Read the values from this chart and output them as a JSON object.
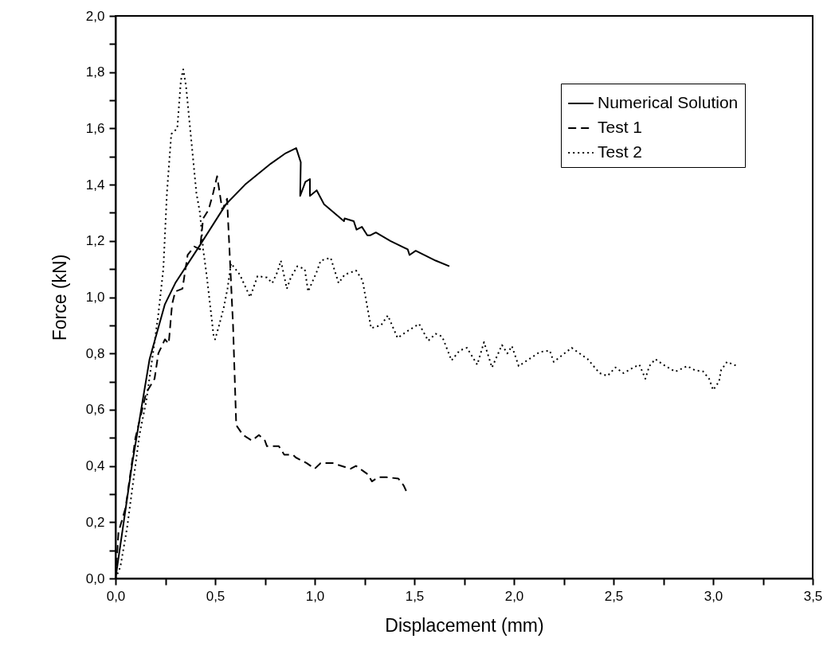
{
  "chart_data": {
    "type": "line",
    "xlabel": "Displacement (mm)",
    "ylabel": "Force (kN)",
    "xlim": [
      0,
      3.5
    ],
    "ylim": [
      0,
      2.0
    ],
    "xticks": [
      {
        "value": 0,
        "label": "0,0"
      },
      {
        "value": 0.25,
        "label": null
      },
      {
        "value": 0.5,
        "label": "0,5"
      },
      {
        "value": 0.75,
        "label": null
      },
      {
        "value": 1.0,
        "label": "1,0"
      },
      {
        "value": 1.25,
        "label": null
      },
      {
        "value": 1.5,
        "label": "1,5"
      },
      {
        "value": 1.75,
        "label": null
      },
      {
        "value": 2.0,
        "label": "2,0"
      },
      {
        "value": 2.25,
        "label": null
      },
      {
        "value": 2.5,
        "label": "2,5"
      },
      {
        "value": 2.75,
        "label": null
      },
      {
        "value": 3.0,
        "label": "3,0"
      },
      {
        "value": 3.25,
        "label": null
      },
      {
        "value": 3.5,
        "label": "3,5"
      }
    ],
    "yticks": [
      {
        "value": 0,
        "label": "0,0"
      },
      {
        "value": 0.1,
        "label": null
      },
      {
        "value": 0.2,
        "label": "0,2"
      },
      {
        "value": 0.3,
        "label": null
      },
      {
        "value": 0.4,
        "label": "0,4"
      },
      {
        "value": 0.5,
        "label": null
      },
      {
        "value": 0.6,
        "label": "0,6"
      },
      {
        "value": 0.7,
        "label": null
      },
      {
        "value": 0.8,
        "label": "0,8"
      },
      {
        "value": 0.9,
        "label": null
      },
      {
        "value": 1.0,
        "label": "1,0"
      },
      {
        "value": 1.1,
        "label": null
      },
      {
        "value": 1.2,
        "label": "1,2"
      },
      {
        "value": 1.3,
        "label": null
      },
      {
        "value": 1.4,
        "label": "1,4"
      },
      {
        "value": 1.5,
        "label": null
      },
      {
        "value": 1.6,
        "label": "1,6"
      },
      {
        "value": 1.7,
        "label": null
      },
      {
        "value": 1.8,
        "label": "1,8"
      },
      {
        "value": 1.9,
        "label": null
      },
      {
        "value": 2.0,
        "label": "2,0"
      }
    ],
    "grid": false,
    "legend": "top right",
    "marker": "none",
    "series": [
      {
        "name": "Numerical Solution",
        "color": "#000000",
        "line_style": "solid",
        "x": [
          0,
          0.084,
          0.171,
          0.248,
          0.3,
          0.424,
          0.554,
          0.65,
          0.78,
          0.85,
          0.907,
          0.93,
          0.927,
          0.953,
          0.976,
          0.976,
          1.01,
          1.047,
          1.147,
          1.15,
          1.196,
          1.21,
          1.237,
          1.264,
          1.28,
          1.307,
          1.38,
          1.467,
          1.476,
          1.507,
          1.607,
          1.676
        ],
        "values": [
          0,
          0.41,
          0.78,
          0.975,
          1.05,
          1.185,
          1.33,
          1.4,
          1.475,
          1.51,
          1.53,
          1.48,
          1.36,
          1.41,
          1.42,
          1.36,
          1.38,
          1.33,
          1.27,
          1.28,
          1.27,
          1.24,
          1.25,
          1.22,
          1.22,
          1.23,
          1.2,
          1.17,
          1.15,
          1.165,
          1.13,
          1.11
        ]
      },
      {
        "name": "Test 1",
        "color": "#000000",
        "line_style": "dashed",
        "x": [
          0,
          0.015,
          0.05,
          0.1,
          0.154,
          0.196,
          0.215,
          0.248,
          0.267,
          0.284,
          0.3,
          0.336,
          0.362,
          0.396,
          0.424,
          0.44,
          0.467,
          0.49,
          0.51,
          0.536,
          0.56,
          0.57,
          0.59,
          0.606,
          0.64,
          0.685,
          0.72,
          0.75,
          0.76,
          0.82,
          0.847,
          0.89,
          0.905,
          0.96,
          1.0,
          1.03,
          1.09,
          1.18,
          1.207,
          1.267,
          1.287,
          1.32,
          1.36,
          1.42,
          1.447,
          1.46
        ],
        "values": [
          0,
          0.165,
          0.25,
          0.5,
          0.66,
          0.71,
          0.8,
          0.85,
          0.835,
          0.975,
          1.02,
          1.03,
          1.15,
          1.18,
          1.17,
          1.28,
          1.31,
          1.37,
          1.43,
          1.31,
          1.35,
          1.2,
          0.9,
          0.545,
          0.51,
          0.49,
          0.51,
          0.49,
          0.47,
          0.47,
          0.44,
          0.44,
          0.43,
          0.41,
          0.39,
          0.41,
          0.41,
          0.39,
          0.4,
          0.37,
          0.345,
          0.36,
          0.36,
          0.355,
          0.33,
          0.31
        ]
      },
      {
        "name": "Test 2",
        "color": "#000000",
        "line_style": "dotted",
        "x": [
          0,
          0.024,
          0.058,
          0.12,
          0.154,
          0.196,
          0.215,
          0.24,
          0.258,
          0.28,
          0.31,
          0.328,
          0.34,
          0.354,
          0.38,
          0.406,
          0.424,
          0.44,
          0.458,
          0.476,
          0.492,
          0.5,
          0.52,
          0.544,
          0.562,
          0.58,
          0.624,
          0.676,
          0.713,
          0.76,
          0.787,
          0.813,
          0.83,
          0.86,
          0.88,
          0.913,
          0.95,
          0.967,
          1.01,
          1.03,
          1.08,
          1.12,
          1.15,
          1.207,
          1.24,
          1.273,
          1.283,
          1.333,
          1.367,
          1.416,
          1.467,
          1.524,
          1.57,
          1.607,
          1.64,
          1.687,
          1.727,
          1.764,
          1.816,
          1.85,
          1.89,
          1.94,
          1.967,
          1.99,
          2.024,
          2.13,
          2.18,
          2.2,
          2.29,
          2.37,
          2.43,
          2.47,
          2.51,
          2.55,
          2.6,
          2.63,
          2.66,
          2.68,
          2.71,
          2.75,
          2.81,
          2.87,
          2.91,
          2.95,
          2.98,
          3.0,
          3.03,
          3.04,
          3.07,
          3.12
        ],
        "values": [
          0,
          0.04,
          0.18,
          0.51,
          0.63,
          0.84,
          0.94,
          1.1,
          1.37,
          1.58,
          1.6,
          1.77,
          1.81,
          1.75,
          1.56,
          1.37,
          1.3,
          1.17,
          1.075,
          0.965,
          0.865,
          0.85,
          0.9,
          0.965,
          1.03,
          1.12,
          1.08,
          1.0,
          1.075,
          1.07,
          1.05,
          1.09,
          1.13,
          1.03,
          1.07,
          1.11,
          1.1,
          1.02,
          1.09,
          1.13,
          1.14,
          1.05,
          1.08,
          1.095,
          1.06,
          0.93,
          0.89,
          0.9,
          0.935,
          0.855,
          0.88,
          0.905,
          0.845,
          0.87,
          0.86,
          0.775,
          0.81,
          0.82,
          0.76,
          0.84,
          0.75,
          0.83,
          0.8,
          0.826,
          0.755,
          0.805,
          0.81,
          0.77,
          0.82,
          0.78,
          0.73,
          0.72,
          0.75,
          0.73,
          0.75,
          0.76,
          0.71,
          0.755,
          0.78,
          0.76,
          0.735,
          0.755,
          0.74,
          0.736,
          0.71,
          0.67,
          0.7,
          0.74,
          0.77,
          0.755
        ]
      }
    ]
  }
}
